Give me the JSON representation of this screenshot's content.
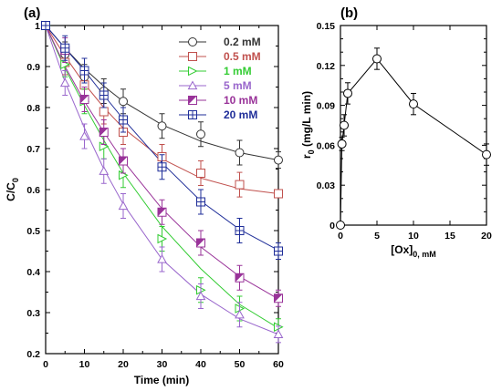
{
  "panels": {
    "a": "(a)",
    "b": "(b)"
  },
  "chart_data": [
    {
      "type": "line",
      "panel": "(a)",
      "xlabel": "Time (min)",
      "ylabel": {
        "main": "C/C",
        "sub": "0"
      },
      "xlim": [
        0,
        60
      ],
      "ylim": [
        0.2,
        1.0
      ],
      "xticks": [
        "0",
        "10",
        "20",
        "30",
        "40",
        "50",
        "60"
      ],
      "yticks": [
        "0.2",
        "0.3",
        "0.4",
        "0.5",
        "0.6",
        "0.7",
        "0.8",
        "0.9",
        "1"
      ],
      "x": [
        0,
        5,
        10,
        15,
        20,
        30,
        40,
        50,
        60
      ],
      "legend_position": "top-right",
      "series": [
        {
          "name": "0.2 mM",
          "color": "#333333",
          "marker": "circle",
          "values": [
            1.0,
            0.93,
            0.875,
            0.84,
            0.815,
            0.755,
            0.735,
            0.69,
            0.672
          ],
          "errors": [
            0.01,
            0.03,
            0.03,
            0.03,
            0.03,
            0.03,
            0.03,
            0.03,
            0.02
          ],
          "fit": [
            1.0,
            0.945,
            0.895,
            0.852,
            0.815,
            0.758,
            0.718,
            0.69,
            0.672
          ]
        },
        {
          "name": "0.5 mM",
          "color": "#c0504d",
          "marker": "square",
          "values": [
            1.0,
            0.91,
            0.855,
            0.79,
            0.74,
            0.68,
            0.64,
            0.612,
            0.59
          ],
          "errors": [
            0.01,
            0.03,
            0.03,
            0.03,
            0.03,
            0.03,
            0.03,
            0.03,
            0.01
          ],
          "fit": [
            1.0,
            0.925,
            0.858,
            0.8,
            0.75,
            0.675,
            0.628,
            0.602,
            0.59
          ]
        },
        {
          "name": "1 mM",
          "color": "#33cc33",
          "marker": "triangle-right",
          "values": [
            1.0,
            0.905,
            0.815,
            0.705,
            0.635,
            0.48,
            0.355,
            0.31,
            0.265
          ],
          "errors": [
            0.01,
            0.03,
            0.03,
            0.03,
            0.03,
            0.03,
            0.03,
            0.03,
            0.02
          ],
          "fit": [
            1.0,
            0.895,
            0.805,
            0.72,
            0.64,
            0.51,
            0.407,
            0.32,
            0.262
          ]
        },
        {
          "name": "5 mM",
          "color": "#9966cc",
          "marker": "triangle-up",
          "values": [
            1.0,
            0.86,
            0.73,
            0.645,
            0.56,
            0.43,
            0.34,
            0.295,
            0.247
          ],
          "errors": [
            0.01,
            0.03,
            0.03,
            0.03,
            0.03,
            0.03,
            0.03,
            0.03,
            0.02
          ],
          "fit": [
            1.0,
            0.862,
            0.75,
            0.65,
            0.565,
            0.43,
            0.345,
            0.285,
            0.247
          ]
        },
        {
          "name": "10 mM",
          "color": "#993399",
          "marker": "half-square",
          "values": [
            1.0,
            0.94,
            0.82,
            0.74,
            0.67,
            0.545,
            0.47,
            0.385,
            0.335
          ],
          "errors": [
            0.01,
            0.03,
            0.03,
            0.03,
            0.03,
            0.03,
            0.03,
            0.03,
            0.02
          ],
          "fit": [
            1.0,
            0.9,
            0.815,
            0.74,
            0.67,
            0.553,
            0.46,
            0.388,
            0.333
          ]
        },
        {
          "name": "20 mM",
          "color": "#1f2e99",
          "marker": "square-plus",
          "values": [
            1.0,
            0.945,
            0.89,
            0.83,
            0.77,
            0.655,
            0.57,
            0.5,
            0.45
          ],
          "errors": [
            0.01,
            0.03,
            0.03,
            0.03,
            0.03,
            0.03,
            0.03,
            0.03,
            0.02
          ],
          "fit": [
            1.0,
            0.945,
            0.89,
            0.83,
            0.772,
            0.665,
            0.572,
            0.503,
            0.452
          ]
        }
      ]
    },
    {
      "type": "line",
      "panel": "(b)",
      "xlabel": {
        "main": "[Ox]",
        "sub": "0, mM"
      },
      "ylabel": {
        "main": "r",
        "sub": "0",
        "rest": " (mg/L min)"
      },
      "xlim": [
        0,
        20
      ],
      "ylim": [
        0,
        0.15
      ],
      "xticks": [
        "0",
        "5",
        "10",
        "15",
        "20"
      ],
      "yticks": [
        "0",
        "0.03",
        "0.06",
        "0.09",
        "0.12",
        "0.15"
      ],
      "series": [
        {
          "name": "r0",
          "color": "#000000",
          "marker": "circle",
          "x": [
            0,
            0.2,
            0.5,
            1,
            5,
            10,
            20
          ],
          "values": [
            0.0,
            0.061,
            0.075,
            0.099,
            0.125,
            0.091,
            0.053
          ],
          "errors": [
            0,
            0.005,
            0.008,
            0.008,
            0.008,
            0.008,
            0.008
          ]
        }
      ]
    }
  ]
}
